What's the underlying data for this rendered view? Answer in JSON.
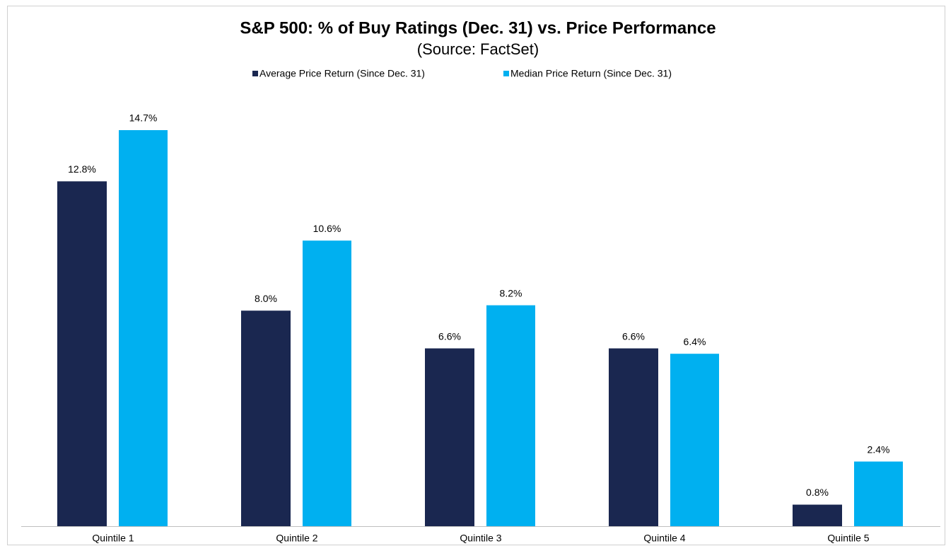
{
  "chart_data": {
    "type": "bar",
    "title": "S&P 500: % of Buy Ratings (Dec. 31) vs. Price Performance",
    "subtitle": "(Source: FactSet)",
    "categories": [
      "Quintile 1",
      "Quintile 2",
      "Quintile 3",
      "Quintile 4",
      "Quintile 5"
    ],
    "series": [
      {
        "name": "Average Price Return (Since Dec. 31)",
        "color": "#1a2750",
        "values": [
          12.8,
          8.0,
          6.6,
          6.6,
          0.8
        ],
        "value_labels": [
          "12.8%",
          "8.0%",
          "6.6%",
          "6.6%",
          "0.8%"
        ]
      },
      {
        "name": "Median Price Return (Since Dec. 31)",
        "color": "#00b0f0",
        "values": [
          14.7,
          10.6,
          8.2,
          6.4,
          2.4
        ],
        "value_labels": [
          "14.7%",
          "10.6%",
          "8.2%",
          "6.4%",
          "2.4%"
        ]
      }
    ],
    "legend": "top"
  }
}
